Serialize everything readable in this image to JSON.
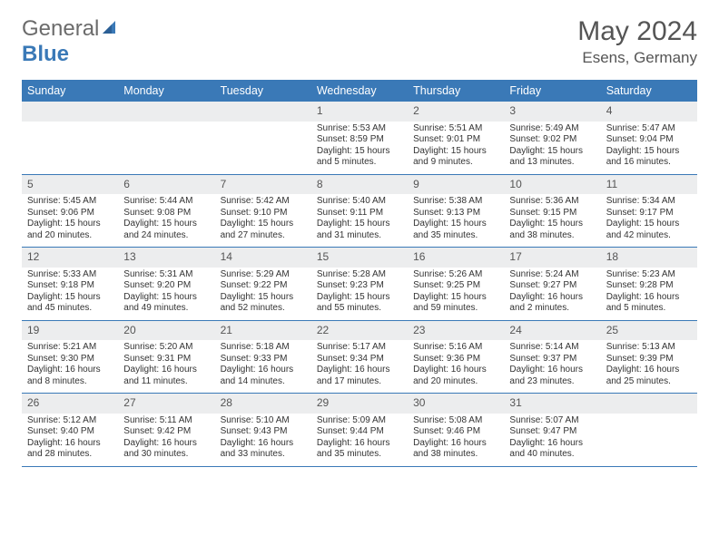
{
  "brand": {
    "part1": "General",
    "part2": "Blue"
  },
  "title": "May 2024",
  "location": "Esens, Germany",
  "colors": {
    "header_bg": "#3a79b7",
    "header_text": "#ffffff",
    "daynum_bg": "#ecedee",
    "border": "#3a79b7",
    "body_text": "#333333",
    "title_text": "#555555"
  },
  "day_names": [
    "Sunday",
    "Monday",
    "Tuesday",
    "Wednesday",
    "Thursday",
    "Friday",
    "Saturday"
  ],
  "weeks": [
    [
      {
        "n": "",
        "sunrise": "",
        "sunset": "",
        "daylight": ""
      },
      {
        "n": "",
        "sunrise": "",
        "sunset": "",
        "daylight": ""
      },
      {
        "n": "",
        "sunrise": "",
        "sunset": "",
        "daylight": ""
      },
      {
        "n": "1",
        "sunrise": "Sunrise: 5:53 AM",
        "sunset": "Sunset: 8:59 PM",
        "daylight": "Daylight: 15 hours and 5 minutes."
      },
      {
        "n": "2",
        "sunrise": "Sunrise: 5:51 AM",
        "sunset": "Sunset: 9:01 PM",
        "daylight": "Daylight: 15 hours and 9 minutes."
      },
      {
        "n": "3",
        "sunrise": "Sunrise: 5:49 AM",
        "sunset": "Sunset: 9:02 PM",
        "daylight": "Daylight: 15 hours and 13 minutes."
      },
      {
        "n": "4",
        "sunrise": "Sunrise: 5:47 AM",
        "sunset": "Sunset: 9:04 PM",
        "daylight": "Daylight: 15 hours and 16 minutes."
      }
    ],
    [
      {
        "n": "5",
        "sunrise": "Sunrise: 5:45 AM",
        "sunset": "Sunset: 9:06 PM",
        "daylight": "Daylight: 15 hours and 20 minutes."
      },
      {
        "n": "6",
        "sunrise": "Sunrise: 5:44 AM",
        "sunset": "Sunset: 9:08 PM",
        "daylight": "Daylight: 15 hours and 24 minutes."
      },
      {
        "n": "7",
        "sunrise": "Sunrise: 5:42 AM",
        "sunset": "Sunset: 9:10 PM",
        "daylight": "Daylight: 15 hours and 27 minutes."
      },
      {
        "n": "8",
        "sunrise": "Sunrise: 5:40 AM",
        "sunset": "Sunset: 9:11 PM",
        "daylight": "Daylight: 15 hours and 31 minutes."
      },
      {
        "n": "9",
        "sunrise": "Sunrise: 5:38 AM",
        "sunset": "Sunset: 9:13 PM",
        "daylight": "Daylight: 15 hours and 35 minutes."
      },
      {
        "n": "10",
        "sunrise": "Sunrise: 5:36 AM",
        "sunset": "Sunset: 9:15 PM",
        "daylight": "Daylight: 15 hours and 38 minutes."
      },
      {
        "n": "11",
        "sunrise": "Sunrise: 5:34 AM",
        "sunset": "Sunset: 9:17 PM",
        "daylight": "Daylight: 15 hours and 42 minutes."
      }
    ],
    [
      {
        "n": "12",
        "sunrise": "Sunrise: 5:33 AM",
        "sunset": "Sunset: 9:18 PM",
        "daylight": "Daylight: 15 hours and 45 minutes."
      },
      {
        "n": "13",
        "sunrise": "Sunrise: 5:31 AM",
        "sunset": "Sunset: 9:20 PM",
        "daylight": "Daylight: 15 hours and 49 minutes."
      },
      {
        "n": "14",
        "sunrise": "Sunrise: 5:29 AM",
        "sunset": "Sunset: 9:22 PM",
        "daylight": "Daylight: 15 hours and 52 minutes."
      },
      {
        "n": "15",
        "sunrise": "Sunrise: 5:28 AM",
        "sunset": "Sunset: 9:23 PM",
        "daylight": "Daylight: 15 hours and 55 minutes."
      },
      {
        "n": "16",
        "sunrise": "Sunrise: 5:26 AM",
        "sunset": "Sunset: 9:25 PM",
        "daylight": "Daylight: 15 hours and 59 minutes."
      },
      {
        "n": "17",
        "sunrise": "Sunrise: 5:24 AM",
        "sunset": "Sunset: 9:27 PM",
        "daylight": "Daylight: 16 hours and 2 minutes."
      },
      {
        "n": "18",
        "sunrise": "Sunrise: 5:23 AM",
        "sunset": "Sunset: 9:28 PM",
        "daylight": "Daylight: 16 hours and 5 minutes."
      }
    ],
    [
      {
        "n": "19",
        "sunrise": "Sunrise: 5:21 AM",
        "sunset": "Sunset: 9:30 PM",
        "daylight": "Daylight: 16 hours and 8 minutes."
      },
      {
        "n": "20",
        "sunrise": "Sunrise: 5:20 AM",
        "sunset": "Sunset: 9:31 PM",
        "daylight": "Daylight: 16 hours and 11 minutes."
      },
      {
        "n": "21",
        "sunrise": "Sunrise: 5:18 AM",
        "sunset": "Sunset: 9:33 PM",
        "daylight": "Daylight: 16 hours and 14 minutes."
      },
      {
        "n": "22",
        "sunrise": "Sunrise: 5:17 AM",
        "sunset": "Sunset: 9:34 PM",
        "daylight": "Daylight: 16 hours and 17 minutes."
      },
      {
        "n": "23",
        "sunrise": "Sunrise: 5:16 AM",
        "sunset": "Sunset: 9:36 PM",
        "daylight": "Daylight: 16 hours and 20 minutes."
      },
      {
        "n": "24",
        "sunrise": "Sunrise: 5:14 AM",
        "sunset": "Sunset: 9:37 PM",
        "daylight": "Daylight: 16 hours and 23 minutes."
      },
      {
        "n": "25",
        "sunrise": "Sunrise: 5:13 AM",
        "sunset": "Sunset: 9:39 PM",
        "daylight": "Daylight: 16 hours and 25 minutes."
      }
    ],
    [
      {
        "n": "26",
        "sunrise": "Sunrise: 5:12 AM",
        "sunset": "Sunset: 9:40 PM",
        "daylight": "Daylight: 16 hours and 28 minutes."
      },
      {
        "n": "27",
        "sunrise": "Sunrise: 5:11 AM",
        "sunset": "Sunset: 9:42 PM",
        "daylight": "Daylight: 16 hours and 30 minutes."
      },
      {
        "n": "28",
        "sunrise": "Sunrise: 5:10 AM",
        "sunset": "Sunset: 9:43 PM",
        "daylight": "Daylight: 16 hours and 33 minutes."
      },
      {
        "n": "29",
        "sunrise": "Sunrise: 5:09 AM",
        "sunset": "Sunset: 9:44 PM",
        "daylight": "Daylight: 16 hours and 35 minutes."
      },
      {
        "n": "30",
        "sunrise": "Sunrise: 5:08 AM",
        "sunset": "Sunset: 9:46 PM",
        "daylight": "Daylight: 16 hours and 38 minutes."
      },
      {
        "n": "31",
        "sunrise": "Sunrise: 5:07 AM",
        "sunset": "Sunset: 9:47 PM",
        "daylight": "Daylight: 16 hours and 40 minutes."
      },
      {
        "n": "",
        "sunrise": "",
        "sunset": "",
        "daylight": ""
      }
    ]
  ]
}
